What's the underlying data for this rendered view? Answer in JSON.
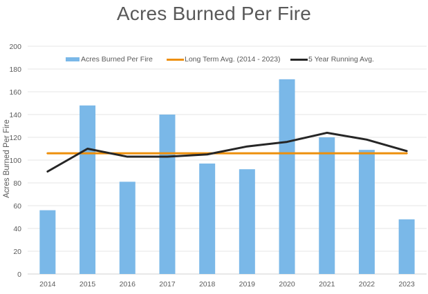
{
  "chart_data": {
    "type": "bar",
    "title": "Acres Burned Per Fire",
    "xlabel": "",
    "ylabel": "Acres Burned Per Fire",
    "ylim": [
      0,
      200
    ],
    "yticks": [
      0,
      20,
      40,
      60,
      80,
      100,
      120,
      140,
      160,
      180,
      200
    ],
    "grid": true,
    "legend_position": "top",
    "categories": [
      "2014",
      "2015",
      "2016",
      "2017",
      "2018",
      "2019",
      "2020",
      "2021",
      "2022",
      "2023"
    ],
    "series": [
      {
        "name": "Acres Burned Per Fire",
        "type": "bar",
        "color": "#7ab8e8",
        "values": [
          56,
          148,
          81,
          140,
          97,
          92,
          171,
          120,
          109,
          48
        ]
      },
      {
        "name": "Long Term Avg. (2014 - 2023)",
        "type": "line",
        "color": "#ed8f0b",
        "values": [
          106,
          106,
          106,
          106,
          106,
          106,
          106,
          106,
          106,
          106
        ]
      },
      {
        "name": "5 Year Running Avg.",
        "type": "line",
        "color": "#262626",
        "values": [
          90,
          110,
          103,
          103,
          105,
          112,
          116,
          124,
          118,
          108
        ]
      }
    ]
  }
}
